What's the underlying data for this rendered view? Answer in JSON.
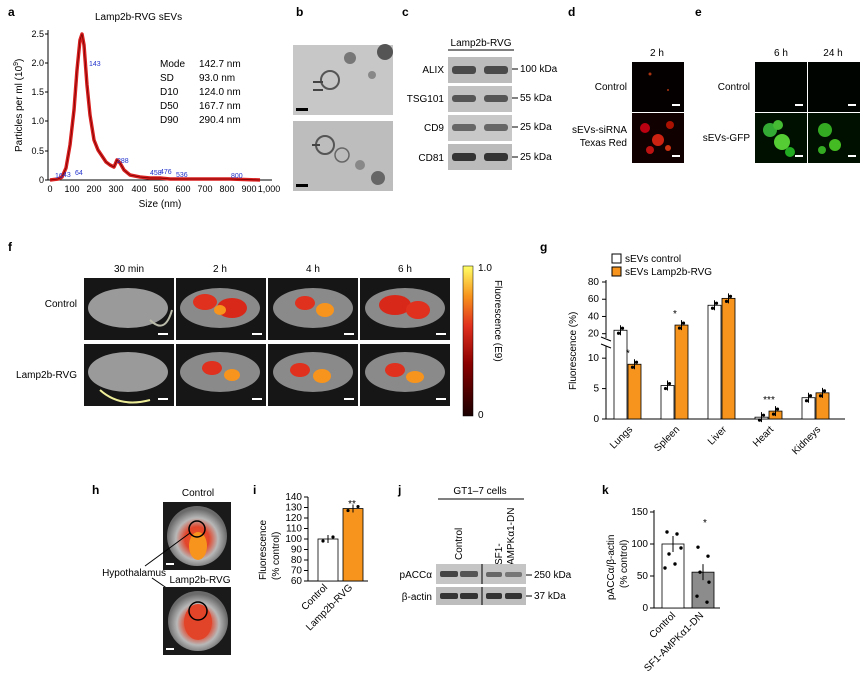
{
  "panels": {
    "a": "a",
    "b": "b",
    "c": "c",
    "d": "d",
    "e": "e",
    "f": "f",
    "g": "g",
    "h": "h",
    "i": "i",
    "j": "j",
    "k": "k"
  },
  "a": {
    "title": "Lamp2b-RVG sEVs",
    "ylabel": "Particles per ml (10",
    "ylabel_exp": "9",
    "ylabel_end": ")",
    "xlabel": "Size (nm)",
    "stats": [
      {
        "k": "Mode",
        "v": "142.7 nm"
      },
      {
        "k": "SD",
        "v": "93.0 nm"
      },
      {
        "k": "D10",
        "v": "124.0 nm"
      },
      {
        "k": "D50",
        "v": "167.7 nm"
      },
      {
        "k": "D90",
        "v": "290.4 nm"
      }
    ],
    "peak_labels": [
      "143",
      "288",
      "16",
      "43",
      "64",
      "458",
      "476",
      "536",
      "800"
    ]
  },
  "c": {
    "header": "Lamp2b-RVG",
    "rows": [
      {
        "name": "ALIX",
        "kda": "100 kDa"
      },
      {
        "name": "TSG101",
        "kda": "55 kDa"
      },
      {
        "name": "CD9",
        "kda": "25 kDa"
      },
      {
        "name": "CD81",
        "kda": "25 kDa"
      }
    ]
  },
  "d": {
    "time": "2 h",
    "row1": "Control",
    "row2a": "sEVs-siRNA",
    "row2b": "Texas Red"
  },
  "e": {
    "time1": "6 h",
    "time2": "24 h",
    "row1": "Control",
    "row2": "sEVs-GFP"
  },
  "f": {
    "times": [
      "30 min",
      "2 h",
      "4 h",
      "6 h"
    ],
    "row1": "Control",
    "row2": "Lamp2b-RVG",
    "cbar_max": "1.0",
    "cbar_min": "0",
    "cbar_label": "Fluorescence (E9)"
  },
  "g": {
    "legend": [
      "sEVs control",
      "sEVs Lamp2b-RVG"
    ],
    "ylabel": "Fluorescence (%)",
    "colors": {
      "control": "#ffffff",
      "rvg": "#f7941d"
    },
    "chart_data": {
      "type": "bar",
      "categories": [
        "Lungs",
        "Spleen",
        "Liver",
        "Heart",
        "Kidneys"
      ],
      "series": [
        {
          "name": "sEVs control",
          "values": [
            24,
            5.5,
            53,
            0.3,
            3.5
          ]
        },
        {
          "name": "sEVs Lamp2b-RVG",
          "values": [
            9,
            30,
            61,
            1.3,
            4.3
          ]
        }
      ],
      "significance": [
        "*",
        "*",
        "",
        "***",
        ""
      ],
      "yticks_low": [
        "0",
        "5",
        "10"
      ],
      "yticks_high": [
        "20",
        "40",
        "60",
        "80"
      ]
    }
  },
  "h": {
    "top": "Control",
    "label": "Hypothalamus",
    "bottom": "Lamp2b-RVG"
  },
  "i": {
    "ylabel1": "Fluorescence",
    "ylabel2": "(% control)",
    "yticks": [
      "60",
      "70",
      "80",
      "90",
      "100",
      "110",
      "120",
      "130",
      "140"
    ],
    "sig": "**",
    "chart_data": {
      "type": "bar",
      "categories": [
        "Control",
        "Lamp2b-RVG"
      ],
      "values": [
        100,
        129
      ],
      "ylim": [
        60,
        140
      ]
    }
  },
  "j": {
    "title": "GT1–7 cells",
    "col1": "Control",
    "col2a": "SF1-",
    "col2b": "AMPKα1-DN",
    "row1": "pACCα",
    "row2": "β-actin",
    "kda1": "250 kDa",
    "kda2": "37 kDa"
  },
  "k": {
    "ylabel1": "pACCα/β-actin",
    "ylabel2": "(% control)",
    "yticks": [
      "0",
      "50",
      "100",
      "150"
    ],
    "sig": "*",
    "chart_data": {
      "type": "bar",
      "categories": [
        "Control",
        "SF1-AMPKα1-DN"
      ],
      "values": [
        100,
        56
      ],
      "ylim": [
        0,
        150
      ]
    }
  }
}
